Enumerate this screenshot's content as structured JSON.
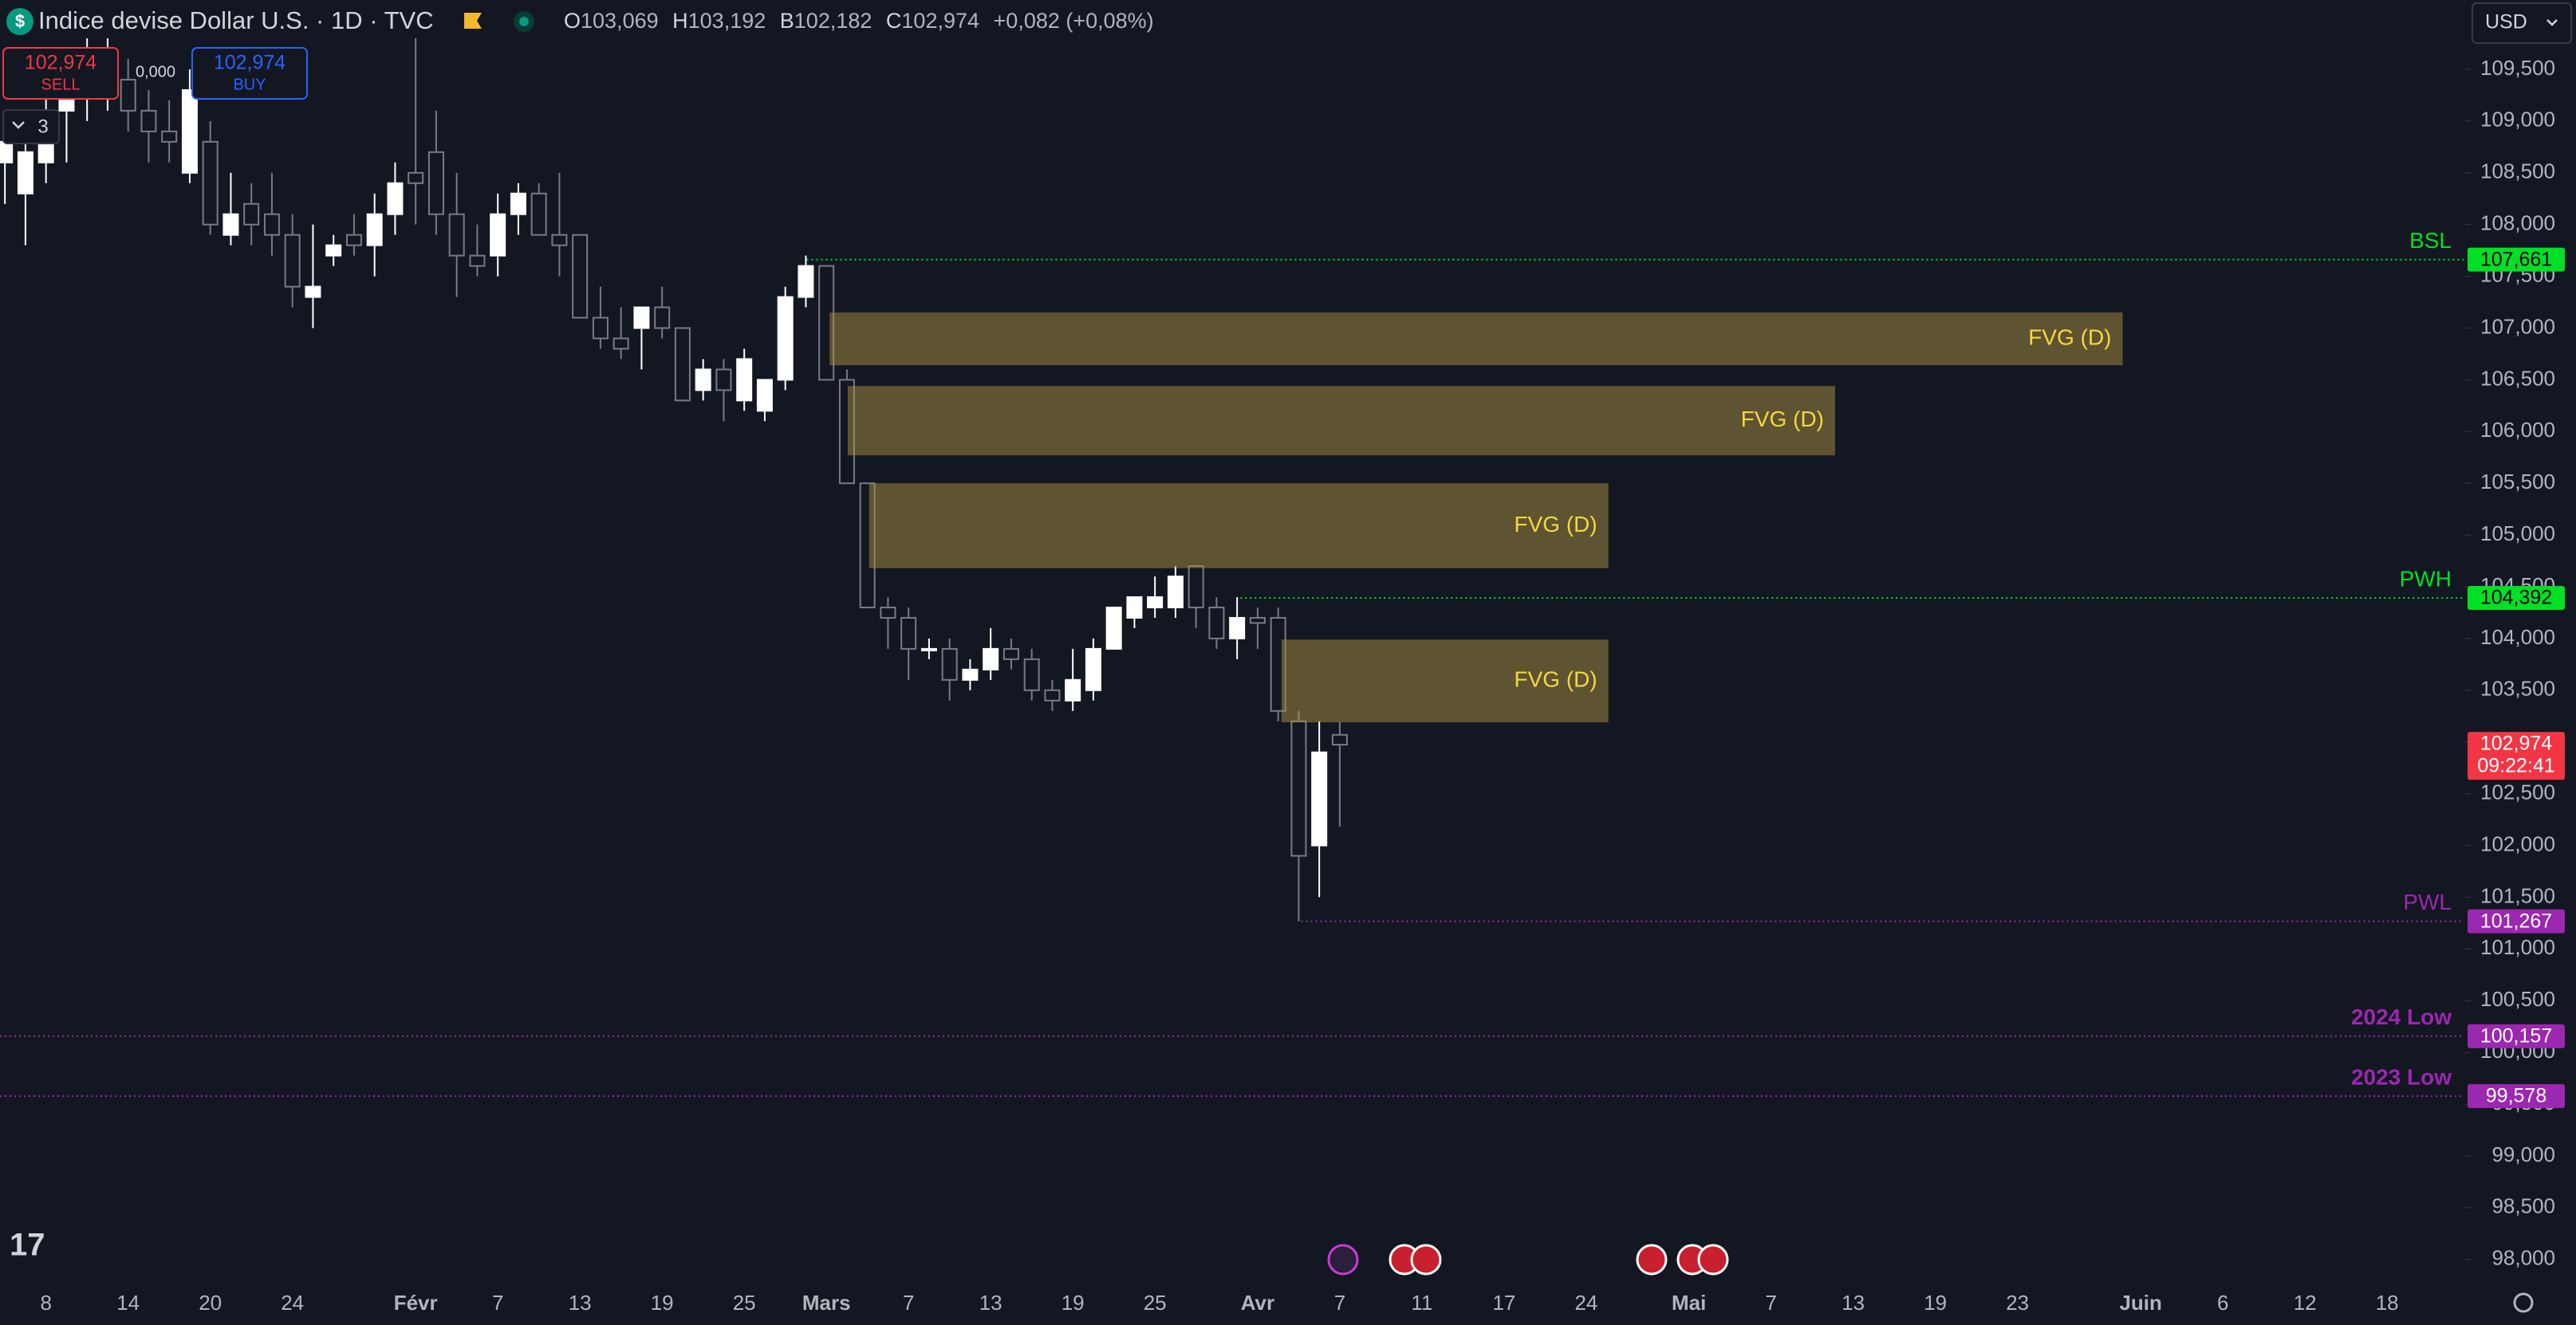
{
  "header": {
    "title": "Indice devise Dollar U.S. · 1D · TVC",
    "ohlc": [
      {
        "key": "O",
        "value": "103,069"
      },
      {
        "key": "H",
        "value": "103,192"
      },
      {
        "key": "B",
        "value": "102,182"
      },
      {
        "key": "C",
        "value": "102,974"
      }
    ],
    "change": "+0,082 (+0,08%)"
  },
  "trade": {
    "sell_price": "102,974",
    "sell": "SELL",
    "spread": "0,000",
    "buy_price": "102,974",
    "buy": "BUY",
    "indicator_count": "3"
  },
  "currency": "USD",
  "chart_data": {
    "type": "candlestick",
    "categories": [
      null,
      null,
      "8",
      null,
      null,
      null,
      "14",
      null,
      null,
      null,
      "20",
      null,
      null,
      null,
      "24",
      null,
      null,
      null,
      null,
      null,
      "Févr",
      null,
      null,
      null,
      "7",
      null,
      null,
      null,
      "13",
      null,
      null,
      null,
      "19",
      null,
      null,
      null,
      "25",
      null,
      null,
      null,
      "Mars",
      null,
      null,
      null,
      "7",
      null,
      null,
      null,
      "13",
      null,
      null,
      null,
      "19",
      null,
      null,
      null,
      "25",
      null,
      null,
      null,
      null,
      "Avr",
      null,
      null,
      null,
      "7",
      null,
      null,
      null,
      "11",
      null,
      null,
      null,
      "17",
      null,
      null,
      null,
      "24",
      null,
      null,
      null,
      null,
      "Mai",
      null,
      null,
      null,
      "7",
      null,
      null,
      null,
      "13",
      null,
      null,
      null,
      "19",
      null,
      null,
      null,
      "23",
      null,
      null,
      null,
      null,
      null,
      "Juin",
      null,
      null,
      null,
      "6",
      null,
      null,
      null,
      "12",
      null,
      null,
      null,
      "18",
      null,
      null,
      null
    ],
    "open": [
      108.6,
      108.3,
      108.6,
      109.1,
      109.3,
      109.4,
      109.4,
      109.1,
      108.9,
      108.5,
      108.8,
      107.9,
      108.2,
      108.1,
      107.9,
      107.3,
      107.7,
      107.9,
      107.8,
      108.1,
      108.5,
      108.7,
      108.1,
      107.7,
      107.7,
      108.1,
      108.3,
      107.9,
      107.9,
      107.1,
      106.9,
      107.0,
      107.2,
      107.0,
      106.4,
      106.6,
      106.3,
      106.2,
      106.5,
      107.3,
      107.6,
      106.5,
      105.5,
      104.3,
      104.2,
      103.9,
      103.9,
      103.6,
      103.7,
      103.9,
      103.8,
      103.5,
      103.4,
      103.5,
      103.9,
      104.2,
      104.3,
      104.3,
      104.7,
      104.3,
      104.0,
      104.2,
      104.2,
      103.2,
      102.0,
      103.069,
      null,
      null,
      null,
      null,
      null,
      null,
      null,
      null,
      null,
      null,
      null,
      null,
      null,
      null,
      null,
      null,
      null,
      null,
      null,
      null,
      null,
      null,
      null,
      null,
      null,
      null,
      null,
      null,
      null,
      null,
      null,
      null,
      null,
      null,
      null,
      null,
      null,
      null,
      null,
      null,
      null,
      null,
      null,
      null,
      null,
      null,
      null,
      null,
      null,
      null,
      null,
      null,
      null,
      null
    ],
    "high": [
      109.1,
      108.9,
      109.3,
      109.6,
      109.8,
      109.8,
      109.6,
      109.3,
      109.2,
      109.5,
      109.0,
      108.5,
      108.4,
      108.5,
      108.1,
      108.0,
      107.9,
      108.1,
      108.3,
      108.6,
      109.8,
      109.1,
      108.5,
      108.0,
      108.3,
      108.4,
      108.4,
      108.5,
      107.9,
      107.4,
      107.2,
      107.2,
      107.4,
      107.0,
      106.7,
      106.7,
      106.8,
      106.5,
      107.4,
      107.7,
      107.6,
      106.6,
      105.5,
      104.4,
      104.3,
      104.0,
      104.0,
      103.8,
      104.1,
      104.0,
      103.9,
      103.6,
      103.9,
      104.0,
      104.3,
      104.4,
      104.6,
      104.7,
      104.7,
      104.4,
      104.4,
      104.3,
      104.3,
      103.3,
      103.2,
      103.192,
      null,
      null,
      null,
      null,
      null,
      null,
      null,
      null,
      null,
      null,
      null,
      null,
      null,
      null,
      null,
      null,
      null,
      null,
      null,
      null,
      null,
      null,
      null,
      null,
      null,
      null,
      null,
      null,
      null,
      null,
      null,
      null,
      null,
      null,
      null,
      null,
      null,
      null,
      null,
      null,
      null,
      null,
      null,
      null,
      null,
      null,
      null,
      null,
      null,
      null,
      null,
      null,
      null,
      null
    ],
    "low": [
      108.2,
      107.8,
      108.4,
      108.6,
      109.0,
      109.1,
      108.9,
      108.6,
      108.6,
      108.4,
      107.9,
      107.8,
      107.8,
      107.7,
      107.2,
      107.0,
      107.6,
      107.7,
      107.5,
      107.9,
      108.0,
      107.9,
      107.3,
      107.5,
      107.5,
      107.9,
      107.9,
      107.5,
      107.1,
      106.8,
      106.7,
      106.6,
      106.9,
      106.3,
      106.3,
      106.1,
      106.2,
      106.1,
      106.4,
      107.2,
      106.5,
      105.5,
      104.3,
      103.9,
      103.6,
      103.8,
      103.4,
      103.5,
      103.6,
      103.7,
      103.4,
      103.3,
      103.3,
      103.4,
      103.9,
      104.1,
      104.2,
      104.2,
      104.1,
      103.9,
      103.8,
      103.9,
      103.2,
      101.267,
      101.5,
      102.182,
      null,
      null,
      null,
      null,
      null,
      null,
      null,
      null,
      null,
      null,
      null,
      null,
      null,
      null,
      null,
      null,
      null,
      null,
      null,
      null,
      null,
      null,
      null,
      null,
      null,
      null,
      null,
      null,
      null,
      null,
      null,
      null,
      null,
      null,
      null,
      null,
      null,
      null,
      null,
      null,
      null,
      null,
      null,
      null,
      null,
      null,
      null,
      null,
      null,
      null,
      null,
      null,
      null,
      null
    ],
    "close": [
      108.8,
      108.7,
      109.1,
      109.3,
      109.5,
      109.6,
      109.1,
      108.9,
      108.8,
      109.3,
      108.0,
      108.1,
      108.0,
      107.9,
      107.4,
      107.4,
      107.8,
      107.8,
      108.1,
      108.4,
      108.4,
      108.1,
      107.7,
      107.6,
      108.1,
      108.3,
      107.9,
      107.8,
      107.1,
      106.9,
      106.8,
      107.2,
      107.0,
      106.3,
      106.6,
      106.4,
      106.7,
      106.5,
      107.3,
      107.6,
      106.5,
      105.5,
      104.3,
      104.2,
      103.9,
      103.9,
      103.6,
      103.7,
      103.9,
      103.8,
      103.5,
      103.4,
      103.6,
      103.9,
      104.3,
      104.4,
      104.4,
      104.6,
      104.3,
      104.0,
      104.2,
      104.15,
      103.3,
      101.9,
      102.9,
      102.974,
      null,
      null,
      null,
      null,
      null,
      null,
      null,
      null,
      null,
      null,
      null,
      null,
      null,
      null,
      null,
      null,
      null,
      null,
      null,
      null,
      null,
      null,
      null,
      null,
      null,
      null,
      null,
      null,
      null,
      null,
      null,
      null,
      null,
      null,
      null,
      null,
      null,
      null,
      null,
      null,
      null,
      null,
      null,
      null,
      null,
      null,
      null,
      null,
      null,
      null,
      null,
      null,
      null,
      null
    ],
    "up_color": "#ffffff",
    "down_color": "#131722",
    "wick_color": "#787b86",
    "ylim": [
      97.79,
      110.17
    ],
    "yticks": [
      {
        "value": 109.5,
        "label": "109,500"
      },
      {
        "value": 109,
        "label": "109,000"
      },
      {
        "value": 108.5,
        "label": "108,500"
      },
      {
        "value": 108,
        "label": "108,000"
      },
      {
        "value": 107.5,
        "label": "107,500"
      },
      {
        "value": 107,
        "label": "107,000"
      },
      {
        "value": 106.5,
        "label": "106,500"
      },
      {
        "value": 106,
        "label": "106,000"
      },
      {
        "value": 105.5,
        "label": "105,500"
      },
      {
        "value": 105,
        "label": "105,000"
      },
      {
        "value": 104.5,
        "label": "104,500"
      },
      {
        "value": 104,
        "label": "104,000"
      },
      {
        "value": 103.5,
        "label": "103,500"
      },
      {
        "value": 103,
        "label": "103,000"
      },
      {
        "value": 102.5,
        "label": "102,500"
      },
      {
        "value": 102,
        "label": "102,000"
      },
      {
        "value": 101.5,
        "label": "101,500"
      },
      {
        "value": 101,
        "label": "101,000"
      },
      {
        "value": 100.5,
        "label": "100,500"
      },
      {
        "value": 100,
        "label": "100,000"
      },
      {
        "value": 99.5,
        "label": "99,500"
      },
      {
        "value": 99,
        "label": "99,000"
      },
      {
        "value": 98.5,
        "label": "98,500"
      },
      {
        "value": 98,
        "label": "98,000"
      }
    ],
    "fvg_color": "#a99140",
    "fvg_text_color": "#f5d742",
    "fvg": [
      {
        "top": 107.15,
        "bottom": 106.64,
        "label": "FVG (D)"
      },
      {
        "top": 106.44,
        "bottom": 105.77,
        "label": "FVG (D)"
      },
      {
        "top": 105.5,
        "bottom": 104.68,
        "label": "FVG (D)"
      },
      {
        "top": 103.99,
        "bottom": 103.19,
        "label": "FVG (D)"
      }
    ],
    "levels": [
      {
        "name": "BSL",
        "value": 107.661,
        "label": "107,661",
        "color": "#00e025",
        "text_color": "#000000"
      },
      {
        "name": "PWH",
        "value": 104.392,
        "label": "104,392",
        "color": "#00e025",
        "text_color": "#000000"
      },
      {
        "name": "PWL",
        "value": 101.267,
        "label": "101,267",
        "color": "#9c27b0",
        "text_color": "#ffffff"
      },
      {
        "name": "2024 Low",
        "value": 100.157,
        "label": "100,157",
        "color": "#9c27b0",
        "text_color": "#ffffff"
      },
      {
        "name": "2023 Low",
        "value": 99.578,
        "label": "99,578",
        "color": "#9c27b0",
        "text_color": "#ffffff"
      }
    ],
    "last_label": "102,974",
    "countdown": "09:22:41",
    "last_color": "#f23645"
  }
}
